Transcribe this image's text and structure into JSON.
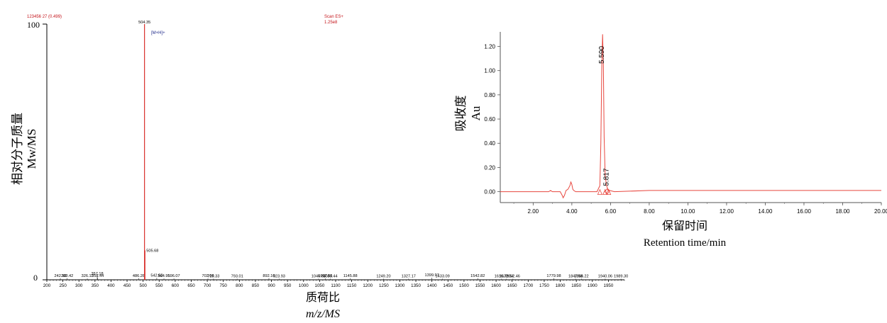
{
  "figure": {
    "ms_ylabel_cn": "相对分子质量",
    "ms_ylabel_en": "Mw/MS",
    "ms_xlabel_cn": "质荷比",
    "ms_xlabel_en": "m/z/MS",
    "hplc_ylabel_cn": "吸收度",
    "hplc_ylabel_en": "Au",
    "hplc_xlabel_cn": "保留时间",
    "hplc_xlabel_en": "Retention time/min",
    "ms_header_left": "123456 27 (0.499)",
    "ms_header_right_1": "Scan ES+",
    "ms_header_right_2": "1.25e8",
    "ms_ion_label": "[M+H]+",
    "ms_y_top": "100",
    "ms_y_bottom": "0"
  },
  "colors": {
    "spectrum": "#d9302c",
    "header_text": "#c4161c",
    "ion_label": "#1f2a8a",
    "axis": "#000000",
    "hplc_trace": "#e8473f",
    "hplc_axis": "#555555"
  },
  "chart_data": [
    {
      "type": "bar",
      "title": "",
      "xlabel": "质荷比 m/z/MS",
      "ylabel": "相对分子质量 Mw/MS",
      "xlim": [
        200,
        2000
      ],
      "ylim": [
        0,
        100
      ],
      "x_ticks": [
        200,
        250,
        300,
        350,
        400,
        450,
        500,
        550,
        600,
        650,
        700,
        750,
        800,
        850,
        900,
        950,
        1000,
        1050,
        1100,
        1150,
        1200,
        1250,
        1300,
        1350,
        1400,
        1450,
        1500,
        1550,
        1600,
        1650,
        1700,
        1750,
        1800,
        1850,
        1900,
        1950
      ],
      "y_ticks": [
        "0",
        "100"
      ],
      "peaks": [
        {
          "mz": 242.18,
          "label": "242.18",
          "intensity": 0.6
        },
        {
          "mz": 263.42,
          "label": "263.42",
          "intensity": 0.6
        },
        {
          "mz": 326.11,
          "label": "326.11",
          "intensity": 0.5
        },
        {
          "mz": 357.18,
          "label": "357.18",
          "intensity": 1.4
        },
        {
          "mz": 358.44,
          "label": "358.44",
          "intensity": 0.6
        },
        {
          "mz": 486.28,
          "label": "486.28",
          "intensity": 0.6
        },
        {
          "mz": 504.35,
          "label": "504.35",
          "intensity": 100
        },
        {
          "mz": 505.68,
          "label": "505.68",
          "intensity": 11.5
        },
        {
          "mz": 542.52,
          "label": "542.52",
          "intensity": 0.7
        },
        {
          "mz": 564.95,
          "label": "564.95",
          "intensity": 0.5
        },
        {
          "mz": 596.07,
          "label": "596.07",
          "intensity": 0.5
        },
        {
          "mz": 702.06,
          "label": "702.06",
          "intensity": 0.5
        },
        {
          "mz": 719.33,
          "label": "719.33",
          "intensity": 0.4
        },
        {
          "mz": 793.01,
          "label": "793.01",
          "intensity": 0.4
        },
        {
          "mz": 892.1,
          "label": "892.10",
          "intensity": 0.6
        },
        {
          "mz": 923.93,
          "label": "923.93",
          "intensity": 0.4
        },
        {
          "mz": 1046.64,
          "label": "1046.64",
          "intensity": 0.4
        },
        {
          "mz": 1067.56,
          "label": "1067.56",
          "intensity": 0.5
        },
        {
          "mz": 1083.44,
          "label": "1083.44",
          "intensity": 0.4
        },
        {
          "mz": 1145.88,
          "label": "1145.88",
          "intensity": 0.6
        },
        {
          "mz": 1249.2,
          "label": "1249.20",
          "intensity": 0.4
        },
        {
          "mz": 1327.17,
          "label": "1327.17",
          "intensity": 0.4
        },
        {
          "mz": 1399.97,
          "label": "1399.97",
          "intensity": 0.8
        },
        {
          "mz": 1433.09,
          "label": "1433.09",
          "intensity": 0.4
        },
        {
          "mz": 1542.82,
          "label": "1542.82",
          "intensity": 0.6
        },
        {
          "mz": 1616.78,
          "label": "1616.78",
          "intensity": 0.4
        },
        {
          "mz": 1632.54,
          "label": "1632.54",
          "intensity": 0.4
        },
        {
          "mz": 1652.46,
          "label": "1652.46",
          "intensity": 0.4
        },
        {
          "mz": 1779.98,
          "label": "1779.98",
          "intensity": 0.6
        },
        {
          "mz": 1847.58,
          "label": "1847.58",
          "intensity": 0.4
        },
        {
          "mz": 1866.22,
          "label": "1866.22",
          "intensity": 0.4
        },
        {
          "mz": 1940.06,
          "label": "1940.06",
          "intensity": 0.4
        },
        {
          "mz": 1989.3,
          "label": "1989.30",
          "intensity": 0.4
        }
      ]
    },
    {
      "type": "line",
      "title": "",
      "xlabel": "保留时间 Retention time/min",
      "ylabel": "吸收度 Au",
      "xlim": [
        0.3,
        20
      ],
      "ylim": [
        -0.09,
        1.32
      ],
      "x_ticks": [
        "2.00",
        "4.00",
        "6.00",
        "8.00",
        "10.00",
        "12.00",
        "14.00",
        "16.00",
        "18.00",
        "20.00"
      ],
      "y_ticks": [
        "0.00",
        "0.20",
        "0.40",
        "0.60",
        "0.80",
        "1.00",
        "1.20"
      ],
      "grid": false,
      "peak_labels": [
        {
          "x": 5.59,
          "y": 1.3,
          "label": "5.590"
        },
        {
          "x": 5.817,
          "y": 0.03,
          "label": "5.817"
        }
      ],
      "series": [
        {
          "x": [
            0.3,
            2.8,
            2.9,
            3.0,
            3.2,
            3.4,
            3.5,
            3.55,
            3.62,
            3.7,
            3.8,
            3.9,
            3.95,
            4.0,
            4.05,
            4.1,
            4.2,
            4.5,
            5.3,
            5.45,
            5.5,
            5.55,
            5.59,
            5.63,
            5.67,
            5.72,
            5.78,
            5.817,
            5.86,
            5.95,
            6.2,
            8.0,
            10.0,
            12.0,
            14.0,
            16.0,
            18.0,
            20.0
          ],
          "y": [
            0.0,
            0.0,
            0.01,
            0.0,
            0.0,
            0.0,
            -0.03,
            -0.05,
            -0.03,
            0.01,
            0.02,
            0.05,
            0.08,
            0.06,
            0.02,
            0.01,
            0.0,
            0.0,
            0.0,
            0.05,
            0.4,
            1.05,
            1.3,
            1.05,
            0.45,
            0.15,
            0.06,
            0.04,
            0.02,
            0.01,
            0.0,
            0.01,
            0.01,
            0.01,
            0.01,
            0.01,
            0.01,
            0.01
          ]
        }
      ]
    }
  ]
}
